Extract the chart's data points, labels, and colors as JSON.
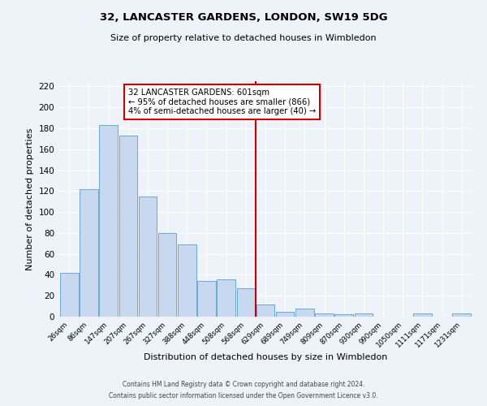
{
  "title": "32, LANCASTER GARDENS, LONDON, SW19 5DG",
  "subtitle": "Size of property relative to detached houses in Wimbledon",
  "xlabel": "Distribution of detached houses by size in Wimbledon",
  "ylabel": "Number of detached properties",
  "bin_labels": [
    "26sqm",
    "86sqm",
    "147sqm",
    "207sqm",
    "267sqm",
    "327sqm",
    "388sqm",
    "448sqm",
    "508sqm",
    "568sqm",
    "629sqm",
    "689sqm",
    "749sqm",
    "809sqm",
    "870sqm",
    "930sqm",
    "990sqm",
    "1050sqm",
    "1111sqm",
    "1171sqm",
    "1231sqm"
  ],
  "bar_heights": [
    42,
    122,
    183,
    173,
    115,
    80,
    69,
    34,
    36,
    27,
    12,
    5,
    8,
    3,
    2,
    3,
    0,
    0,
    3,
    0,
    3
  ],
  "bar_color": "#c8d9ef",
  "bar_edge_color": "#6aaad4",
  "vline_x": 10,
  "vline_color": "#cc0000",
  "annotation_text": "32 LANCASTER GARDENS: 601sqm\n← 95% of detached houses are smaller (866)\n4% of semi-detached houses are larger (40) →",
  "ylim": [
    0,
    225
  ],
  "yticks": [
    0,
    20,
    40,
    60,
    80,
    100,
    120,
    140,
    160,
    180,
    200,
    220
  ],
  "footer_line1": "Contains HM Land Registry data © Crown copyright and database right 2024.",
  "footer_line2": "Contains public sector information licensed under the Open Government Licence v3.0.",
  "bg_color": "#eef2f9",
  "grid_color": "#ffffff"
}
